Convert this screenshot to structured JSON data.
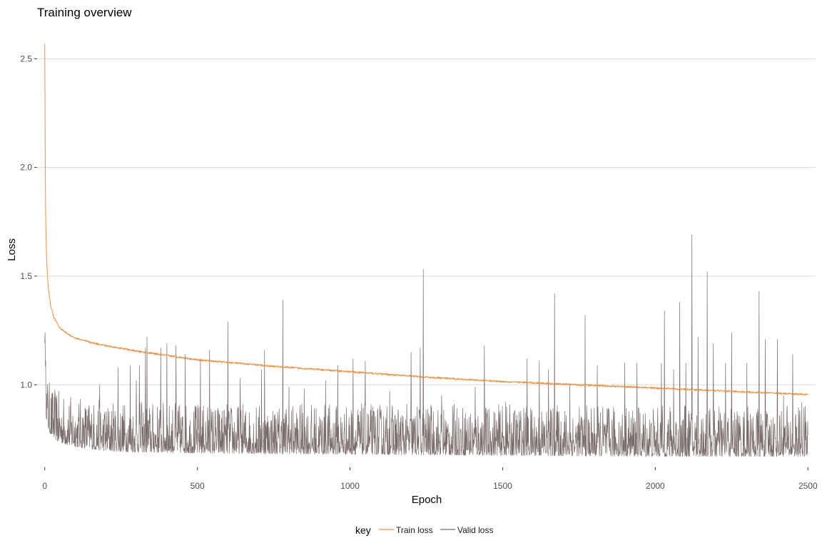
{
  "chart_data": {
    "type": "line",
    "title": "Training overview",
    "xlabel": "Epoch",
    "ylabel": "Loss",
    "xlim": [
      -25,
      2525
    ],
    "ylim": [
      0.62,
      2.58
    ],
    "x_ticks": [
      0,
      500,
      1000,
      1500,
      2000,
      2500
    ],
    "y_ticks": [
      1.0,
      1.5,
      2.0,
      2.5
    ],
    "y_tick_labels": [
      "1.0",
      "1.5",
      "2.0",
      "2.5"
    ],
    "grid": "horizontal-major",
    "legend": {
      "title": "key",
      "position": "bottom"
    },
    "series": [
      {
        "name": "Train loss",
        "color": "#f0913e",
        "noise": 0.004,
        "x": [
          0,
          1,
          2,
          3,
          5,
          8,
          12,
          20,
          30,
          50,
          75,
          100,
          150,
          200,
          250,
          300,
          400,
          500,
          750,
          1000,
          1250,
          1500,
          1750,
          2000,
          2250,
          2500
        ],
        "values": [
          2.57,
          2.28,
          1.95,
          1.78,
          1.63,
          1.52,
          1.44,
          1.36,
          1.31,
          1.26,
          1.235,
          1.215,
          1.195,
          1.18,
          1.168,
          1.155,
          1.135,
          1.115,
          1.085,
          1.06,
          1.035,
          1.015,
          1.0,
          0.985,
          0.97,
          0.955
        ]
      },
      {
        "name": "Valid loss",
        "color": "#786b6a",
        "noise": 0.09,
        "x": [
          0,
          2,
          5,
          10,
          20,
          40,
          80,
          120,
          200,
          300,
          500,
          1000,
          1500,
          2000,
          2500
        ],
        "values": [
          1.24,
          0.98,
          0.9,
          0.85,
          0.82,
          0.79,
          0.77,
          0.76,
          0.745,
          0.74,
          0.735,
          0.73,
          0.725,
          0.72,
          0.72
        ],
        "spikes": [
          [
            1,
            1.24
          ],
          [
            40,
            0.95
          ],
          [
            180,
            1.0
          ],
          [
            240,
            1.08
          ],
          [
            280,
            1.09
          ],
          [
            300,
            1.02
          ],
          [
            310,
            1.09
          ],
          [
            330,
            1.17
          ],
          [
            335,
            1.22
          ],
          [
            380,
            1.17
          ],
          [
            400,
            1.19
          ],
          [
            430,
            1.18
          ],
          [
            460,
            1.14
          ],
          [
            510,
            1.12
          ],
          [
            540,
            1.16
          ],
          [
            600,
            1.29
          ],
          [
            640,
            1.03
          ],
          [
            710,
            1.07
          ],
          [
            720,
            1.16
          ],
          [
            780,
            1.39
          ],
          [
            800,
            0.99
          ],
          [
            850,
            0.98
          ],
          [
            920,
            1.02
          ],
          [
            960,
            1.09
          ],
          [
            1010,
            1.12
          ],
          [
            1050,
            1.11
          ],
          [
            1130,
            0.97
          ],
          [
            1200,
            1.15
          ],
          [
            1230,
            1.17
          ],
          [
            1240,
            1.53
          ],
          [
            1300,
            0.95
          ],
          [
            1410,
            0.99
          ],
          [
            1440,
            1.18
          ],
          [
            1510,
            0.92
          ],
          [
            1580,
            1.12
          ],
          [
            1620,
            1.11
          ],
          [
            1650,
            1.07
          ],
          [
            1670,
            1.42
          ],
          [
            1720,
            1.0
          ],
          [
            1770,
            1.32
          ],
          [
            1810,
            1.09
          ],
          [
            1900,
            1.1
          ],
          [
            1940,
            1.1
          ],
          [
            2020,
            1.1
          ],
          [
            2030,
            1.34
          ],
          [
            2060,
            1.07
          ],
          [
            2080,
            1.38
          ],
          [
            2100,
            1.1
          ],
          [
            2120,
            1.69
          ],
          [
            2140,
            1.22
          ],
          [
            2170,
            1.52
          ],
          [
            2190,
            1.19
          ],
          [
            2230,
            1.1
          ],
          [
            2250,
            1.24
          ],
          [
            2300,
            1.1
          ],
          [
            2340,
            1.43
          ],
          [
            2360,
            1.21
          ],
          [
            2400,
            1.21
          ],
          [
            2420,
            0.95
          ],
          [
            2450,
            1.14
          ],
          [
            2480,
            0.92
          ]
        ]
      }
    ]
  }
}
